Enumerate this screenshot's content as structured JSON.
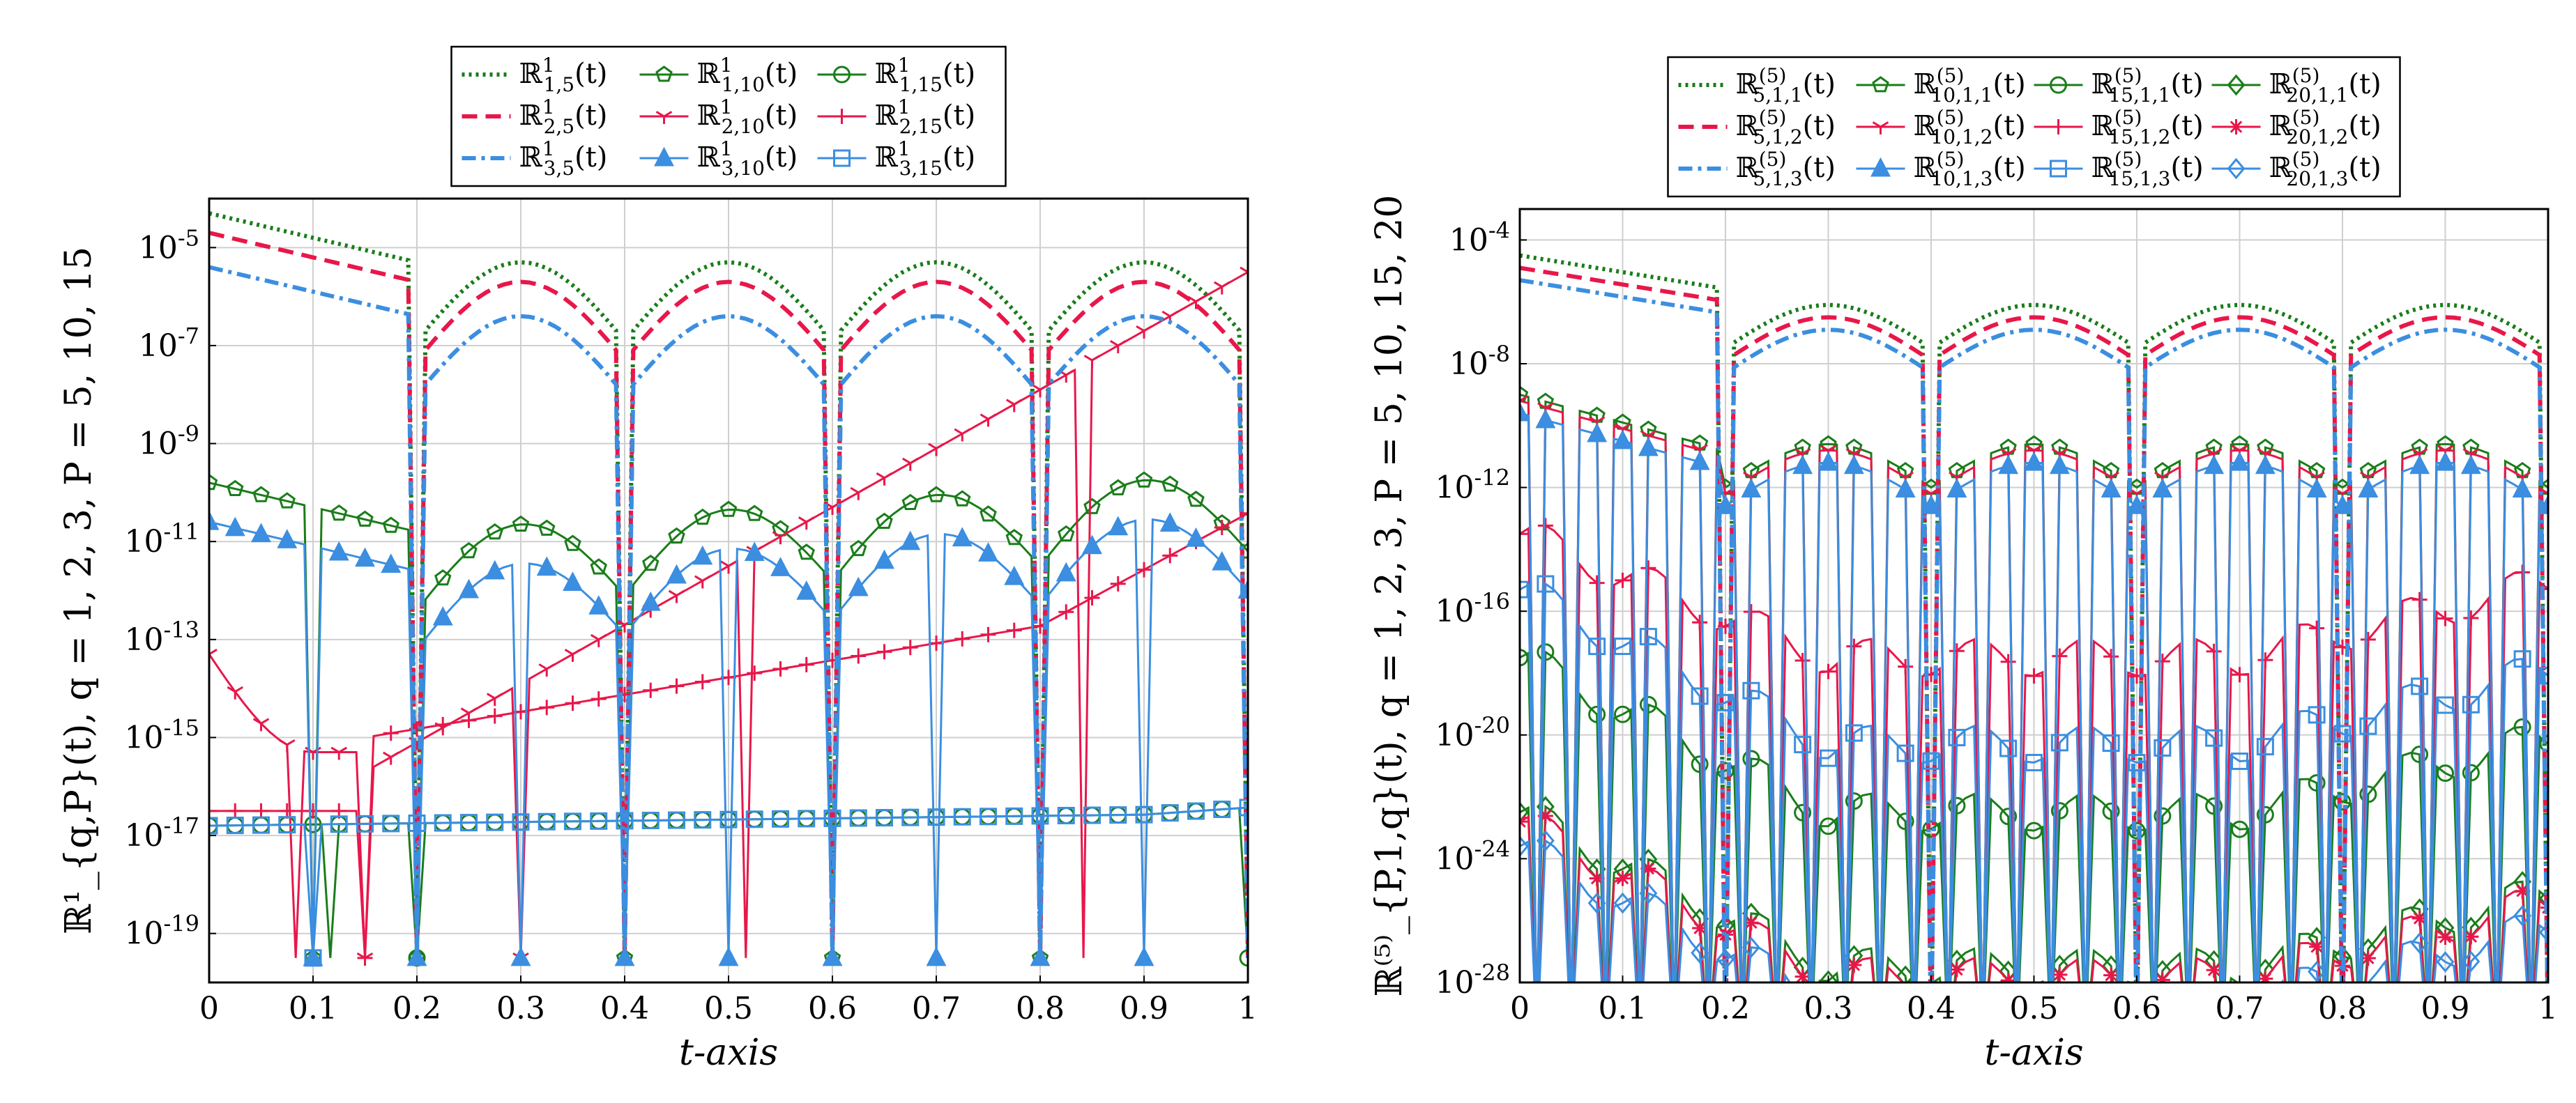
{
  "chart_data": [
    {
      "type": "line",
      "yscale": "log",
      "xlabel": "t-axis",
      "ylabel": "R^1_{q,P}(t),  q = 1, 2, 3,  P = 5, 10, 15",
      "xlim": [
        0,
        1
      ],
      "ylim_exp": [
        -20,
        -4
      ],
      "x_ticks": [
        "0",
        "0.1",
        "0.2",
        "0.3",
        "0.4",
        "0.5",
        "0.6",
        "0.7",
        "0.8",
        "0.9",
        "1"
      ],
      "y_ticks": [
        "10^-19",
        "10^-17",
        "10^-15",
        "10^-13",
        "10^-11",
        "10^-9",
        "10^-7",
        "10^-5"
      ],
      "y_tick_exps": [
        -19,
        -17,
        -15,
        -13,
        -11,
        -9,
        -7,
        -5
      ],
      "legend_placement": "top-center, outside",
      "legend_columns": 3,
      "series": [
        {
          "name": "R^1_{1,5}(t)",
          "color": "#1a7d1a",
          "style": "dotted",
          "marker": "none",
          "profile": "slp",
          "base": -5.5,
          "dips": [
            0.2,
            0.4,
            0.6,
            0.8,
            1.0
          ]
        },
        {
          "name": "R^1_{1,10}(t)",
          "color": "#1a7d1a",
          "style": "solid",
          "marker": "pentagon",
          "profile": "slp",
          "base": -11.0,
          "dips": [
            0.1,
            0.2,
            0.4,
            0.6,
            0.8
          ]
        },
        {
          "name": "R^1_{1,15}(t)",
          "color": "#1a7d1a",
          "style": "solid",
          "marker": "circle",
          "profile": "flat",
          "base": -16.8,
          "dips": [
            0.12,
            0.2,
            1.0
          ]
        },
        {
          "name": "R^1_{2,5}(t)",
          "color": "#e8174a",
          "style": "dashed",
          "marker": "none",
          "profile": "slp",
          "base": -5.9,
          "dips": [
            0.2,
            0.4,
            0.6,
            0.8,
            1.0
          ]
        },
        {
          "name": "R^1_{2,10}(t)",
          "color": "#e8174a",
          "style": "solid",
          "marker": "tri-down",
          "profile": "rise",
          "base": -13.3,
          "dips": [
            0.08,
            0.15,
            0.3,
            0.52,
            0.84
          ]
        },
        {
          "name": "R^1_{2,15}(t)",
          "color": "#e8174a",
          "style": "solid",
          "marker": "plus",
          "profile": "rise2",
          "base": -15.0,
          "dips": [
            0.15
          ]
        },
        {
          "name": "R^1_{3,5}(t)",
          "color": "#3b8ee0",
          "style": "dashdot",
          "marker": "none",
          "profile": "slp",
          "base": -6.6,
          "dips": [
            0.2,
            0.4,
            0.6,
            0.8,
            1.0
          ]
        },
        {
          "name": "R^1_{3,10}(t)",
          "color": "#3b8ee0",
          "style": "solid",
          "marker": "triangle",
          "profile": "slp",
          "base": -11.8,
          "dips": [
            0.1,
            0.2,
            0.3,
            0.4,
            0.5,
            0.6,
            0.7,
            0.8,
            0.9
          ]
        },
        {
          "name": "R^1_{3,15}(t)",
          "color": "#3b8ee0",
          "style": "solid",
          "marker": "square",
          "profile": "flat",
          "base": -16.8,
          "dips": [
            0.1
          ]
        }
      ]
    },
    {
      "type": "line",
      "yscale": "log",
      "xlabel": "t-axis",
      "ylabel": "R^(5)_{P,1,q}(t),  q = 1, 2, 3,  P = 5, 10, 15, 20",
      "xlim": [
        0,
        1
      ],
      "ylim_exp": [
        -28,
        -3
      ],
      "x_ticks": [
        "0",
        "0.1",
        "0.2",
        "0.3",
        "0.4",
        "0.5",
        "0.6",
        "0.7",
        "0.8",
        "0.9",
        "1"
      ],
      "y_ticks": [
        "10^-28",
        "10^-24",
        "10^-20",
        "10^-16",
        "10^-12",
        "10^-8",
        "10^-4"
      ],
      "y_tick_exps": [
        -28,
        -24,
        -20,
        -16,
        -12,
        -8,
        -4
      ],
      "legend_placement": "top-center, outside",
      "legend_columns": 4,
      "series": [
        {
          "name": "R^(5)_{5,1,1}(t)",
          "color": "#1a7d1a",
          "style": "dotted",
          "marker": "none",
          "base": -4.5
        },
        {
          "name": "R^(5)_{10,1,1}(t)",
          "color": "#1a7d1a",
          "style": "solid",
          "marker": "pentagon",
          "base": -9.0
        },
        {
          "name": "R^(5)_{15,1,1}(t)",
          "color": "#1a7d1a",
          "style": "solid",
          "marker": "circle",
          "base": -17.5
        },
        {
          "name": "R^(5)_{20,1,1}(t)",
          "color": "#1a7d1a",
          "style": "solid",
          "marker": "diamond",
          "base": -22.5
        },
        {
          "name": "R^(5)_{5,1,2}(t)",
          "color": "#e8174a",
          "style": "dashed",
          "marker": "none",
          "base": -4.9
        },
        {
          "name": "R^(5)_{10,1,2}(t)",
          "color": "#e8174a",
          "style": "solid",
          "marker": "tri-down",
          "base": -9.2
        },
        {
          "name": "R^(5)_{15,1,2}(t)",
          "color": "#e8174a",
          "style": "solid",
          "marker": "plus",
          "base": -13.5
        },
        {
          "name": "R^(5)_{20,1,2}(t)",
          "color": "#e8174a",
          "style": "solid",
          "marker": "star",
          "base": -22.8
        },
        {
          "name": "R^(5)_{5,1,3}(t)",
          "color": "#3b8ee0",
          "style": "dashdot",
          "marker": "none",
          "base": -5.3
        },
        {
          "name": "R^(5)_{10,1,3}(t)",
          "color": "#3b8ee0",
          "style": "solid",
          "marker": "triangle",
          "base": -9.6
        },
        {
          "name": "R^(5)_{15,1,3}(t)",
          "color": "#3b8ee0",
          "style": "solid",
          "marker": "square",
          "base": -15.3
        },
        {
          "name": "R^(5)_{20,1,3}(t)",
          "color": "#3b8ee0",
          "style": "solid",
          "marker": "diamond",
          "base": -23.6
        }
      ]
    }
  ]
}
